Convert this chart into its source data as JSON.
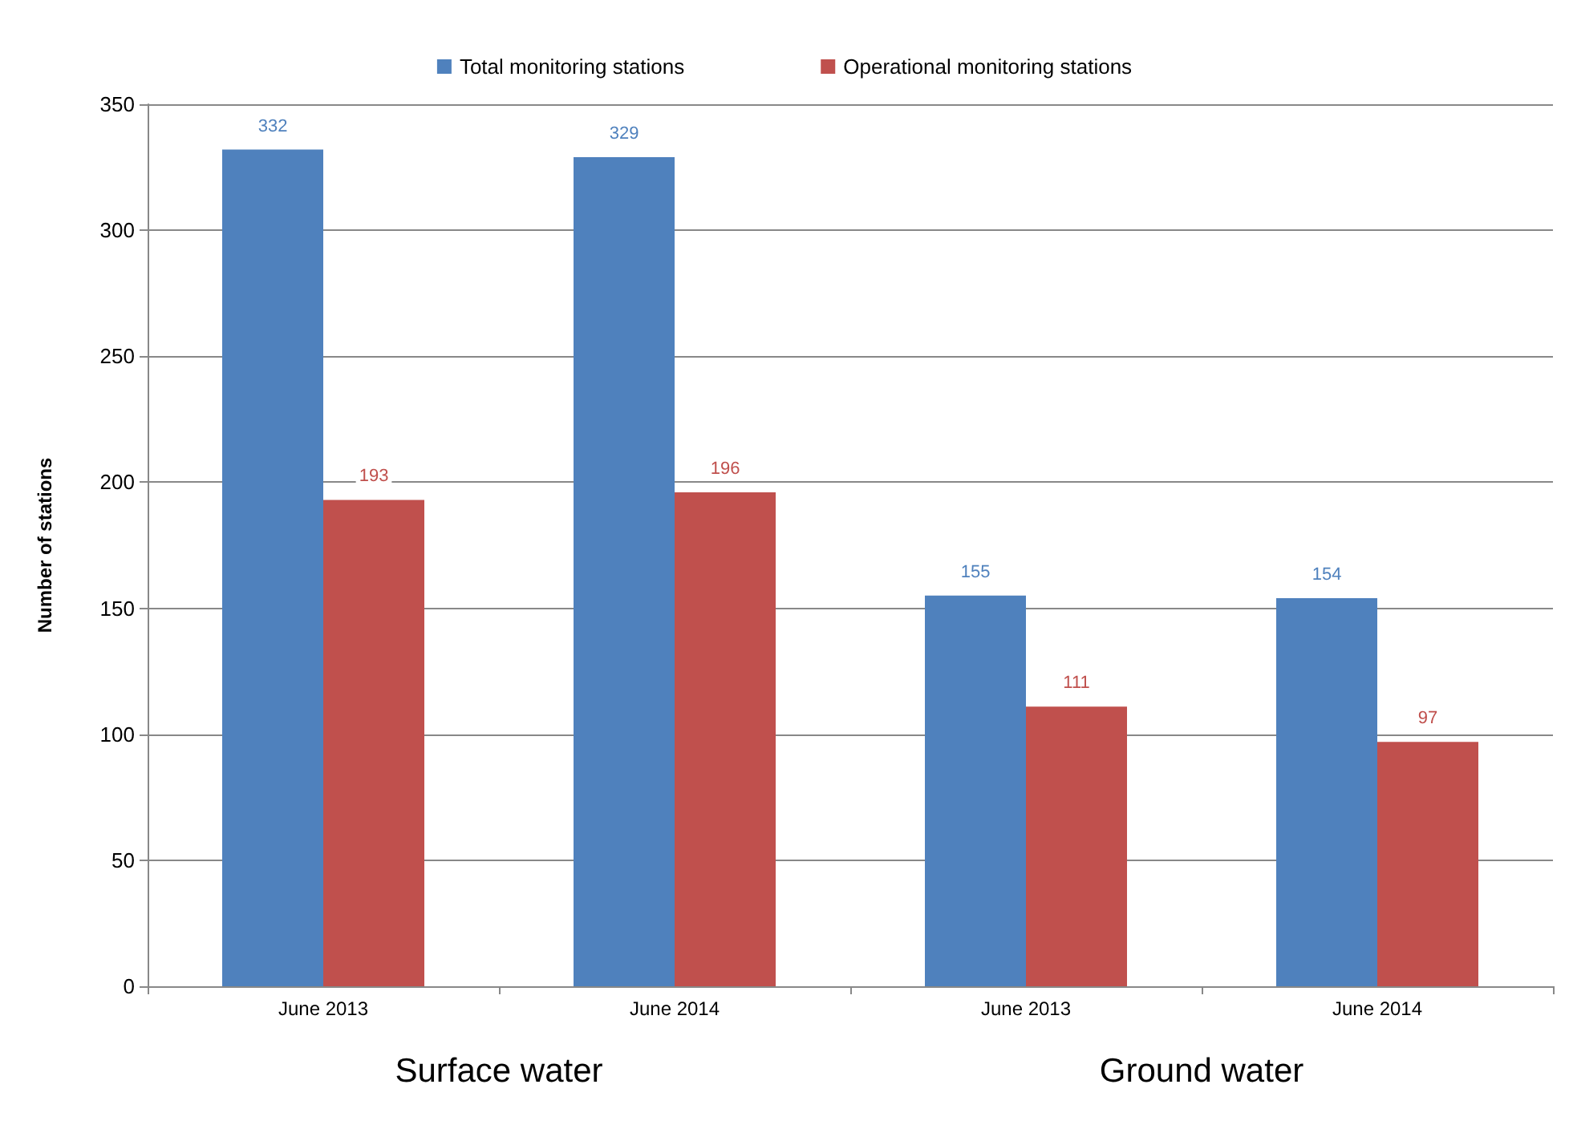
{
  "chart_data": {
    "type": "bar",
    "ylabel": "Number of stations",
    "categories": [
      "June 2013",
      "June 2014",
      "June 2013",
      "June 2014"
    ],
    "series": [
      {
        "name": "Total monitoring stations",
        "color": "#4f81bd",
        "values": [
          332,
          329,
          155,
          154
        ]
      },
      {
        "name": "Operational monitoring stations",
        "color": "#c0504d",
        "values": [
          193,
          196,
          111,
          97
        ]
      }
    ],
    "ylim": [
      0,
      350
    ],
    "yticks": [
      0,
      50,
      100,
      150,
      200,
      250,
      300,
      350
    ],
    "grid": "y",
    "legend": "top",
    "data_labels": true,
    "annotations": [
      "Surface water",
      "Ground water"
    ]
  }
}
